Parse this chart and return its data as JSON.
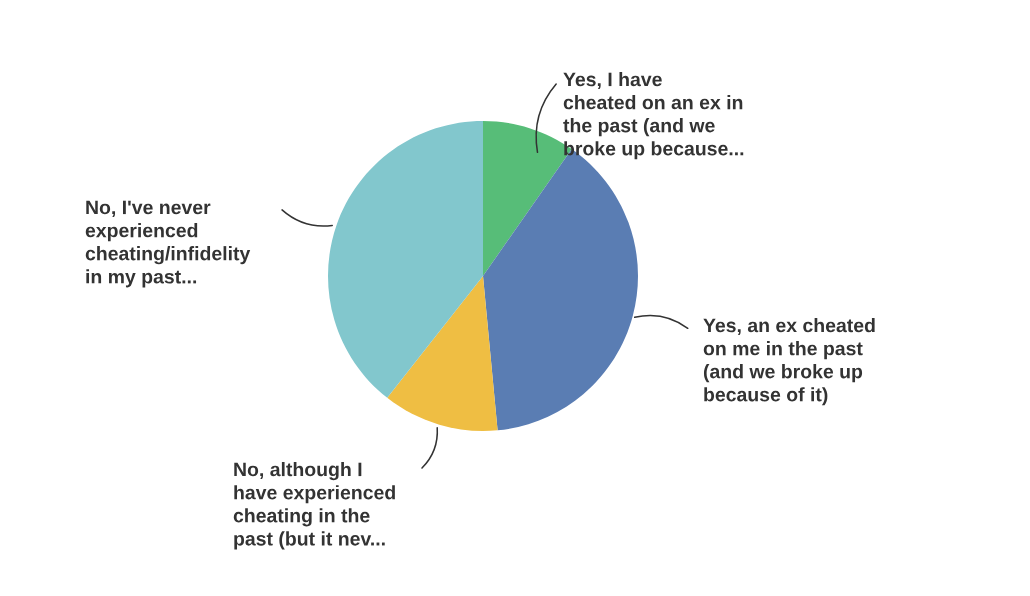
{
  "chart_data": {
    "type": "pie",
    "categories": [
      "Yes, I have\ncheated on an ex in\nthe past (and we\nbroke up because...",
      "Yes, an ex cheated\non me in the past\n(and we broke up\nbecause of it)",
      "No, although I\nhave experienced\ncheating in the\npast (but it nev...",
      "No, I've never\nexperienced\ncheating/infidelity\nin my past..."
    ],
    "values": [
      9.7,
      38.8,
      12.1,
      39.4
    ],
    "colors": [
      "#57bd78",
      "#5a7db3",
      "#efbe43",
      "#82c7cd"
    ]
  }
}
